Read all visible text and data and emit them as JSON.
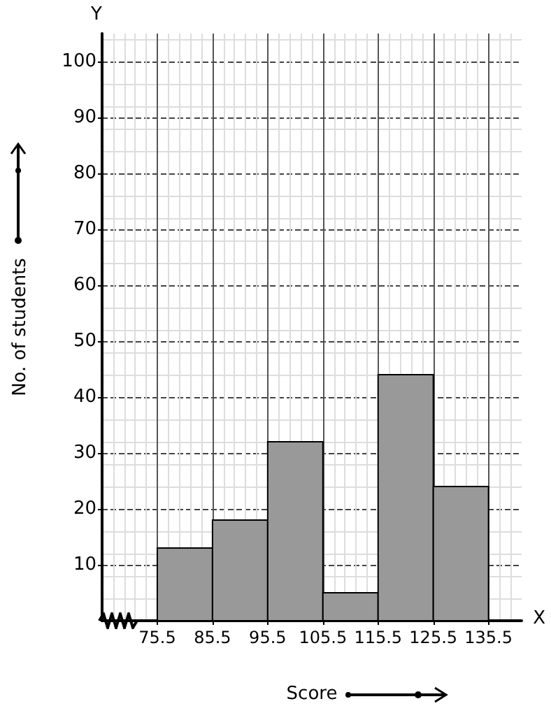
{
  "chart_data": {
    "type": "histogram",
    "xlabel": "Score",
    "ylabel": "No. of students",
    "bins": [
      75.5,
      85.5,
      95.5,
      105.5,
      115.5,
      125.5,
      135.5
    ],
    "values": [
      13,
      18,
      32,
      5,
      44,
      24
    ],
    "color": "#999999",
    "xlim": [
      65.5,
      141.5
    ],
    "xticks": [
      75.5,
      85.5,
      95.5,
      105.5,
      115.5,
      125.5,
      135.5
    ],
    "ylim": [
      0,
      105
    ],
    "yticks": [
      10,
      20,
      30,
      40,
      50,
      60,
      70,
      80,
      90,
      100
    ],
    "annotations": [
      "X",
      "Y"
    ],
    "grid": true
  }
}
